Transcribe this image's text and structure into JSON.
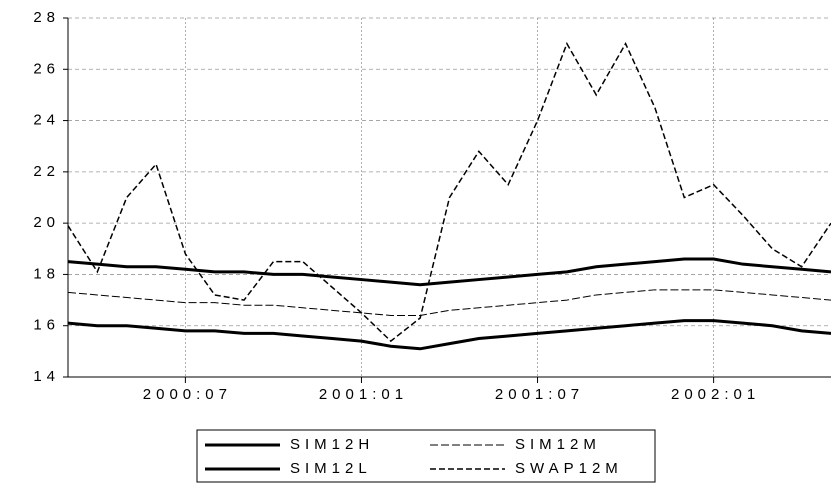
{
  "chart_data": {
    "type": "line",
    "x": [
      "2000:03",
      "2000:04",
      "2000:05",
      "2000:06",
      "2000:07",
      "2000:08",
      "2000:09",
      "2000:10",
      "2000:11",
      "2000:12",
      "2001:01",
      "2001:02",
      "2001:03",
      "2001:04",
      "2001:05",
      "2001:06",
      "2001:07",
      "2001:08",
      "2001:09",
      "2001:10",
      "2001:11",
      "2001:12",
      "2002:01",
      "2002:02",
      "2002:03",
      "2002:04",
      "2002:05"
    ],
    "series": [
      {
        "name": "SIM12H",
        "color": "#000000",
        "width": 3,
        "dash": "none",
        "values": [
          18.5,
          18.4,
          18.3,
          18.3,
          18.2,
          18.1,
          18.1,
          18.0,
          18.0,
          17.9,
          17.8,
          17.7,
          17.6,
          17.7,
          17.8,
          17.9,
          18.0,
          18.1,
          18.3,
          18.4,
          18.5,
          18.6,
          18.6,
          18.4,
          18.3,
          18.2,
          18.1
        ]
      },
      {
        "name": "SIM12M",
        "color": "#000000",
        "width": 1,
        "dash": "8 3",
        "values": [
          17.3,
          17.2,
          17.1,
          17.0,
          16.9,
          16.9,
          16.8,
          16.8,
          16.7,
          16.6,
          16.5,
          16.4,
          16.4,
          16.6,
          16.7,
          16.8,
          16.9,
          17.0,
          17.2,
          17.3,
          17.4,
          17.4,
          17.4,
          17.3,
          17.2,
          17.1,
          17.0
        ]
      },
      {
        "name": "SIM12L",
        "color": "#000000",
        "width": 3,
        "dash": "none",
        "values": [
          16.1,
          16.0,
          16.0,
          15.9,
          15.8,
          15.8,
          15.7,
          15.7,
          15.6,
          15.5,
          15.4,
          15.2,
          15.1,
          15.3,
          15.5,
          15.6,
          15.7,
          15.8,
          15.9,
          16.0,
          16.1,
          16.2,
          16.2,
          16.1,
          16.0,
          15.8,
          15.7
        ]
      },
      {
        "name": "SWAP12M",
        "color": "#000000",
        "width": 1.5,
        "dash": "6 3",
        "values": [
          19.9,
          18.1,
          21.0,
          22.3,
          18.8,
          17.2,
          17.0,
          18.5,
          18.5,
          17.5,
          16.5,
          15.4,
          16.3,
          21.0,
          22.8,
          21.5,
          24.0,
          27.0,
          25.0,
          27.0,
          24.5,
          21.0,
          21.5,
          20.3,
          19.0,
          18.3,
          20.0
        ]
      }
    ],
    "xlim": [
      "2000:03",
      "2002:05"
    ],
    "xticks": [
      "2000:07",
      "2001:01",
      "2001:07",
      "2002:01"
    ],
    "ylim": [
      14,
      28
    ],
    "yticks": [
      14,
      16,
      18,
      20,
      22,
      24,
      26,
      28
    ],
    "grid": true
  }
}
